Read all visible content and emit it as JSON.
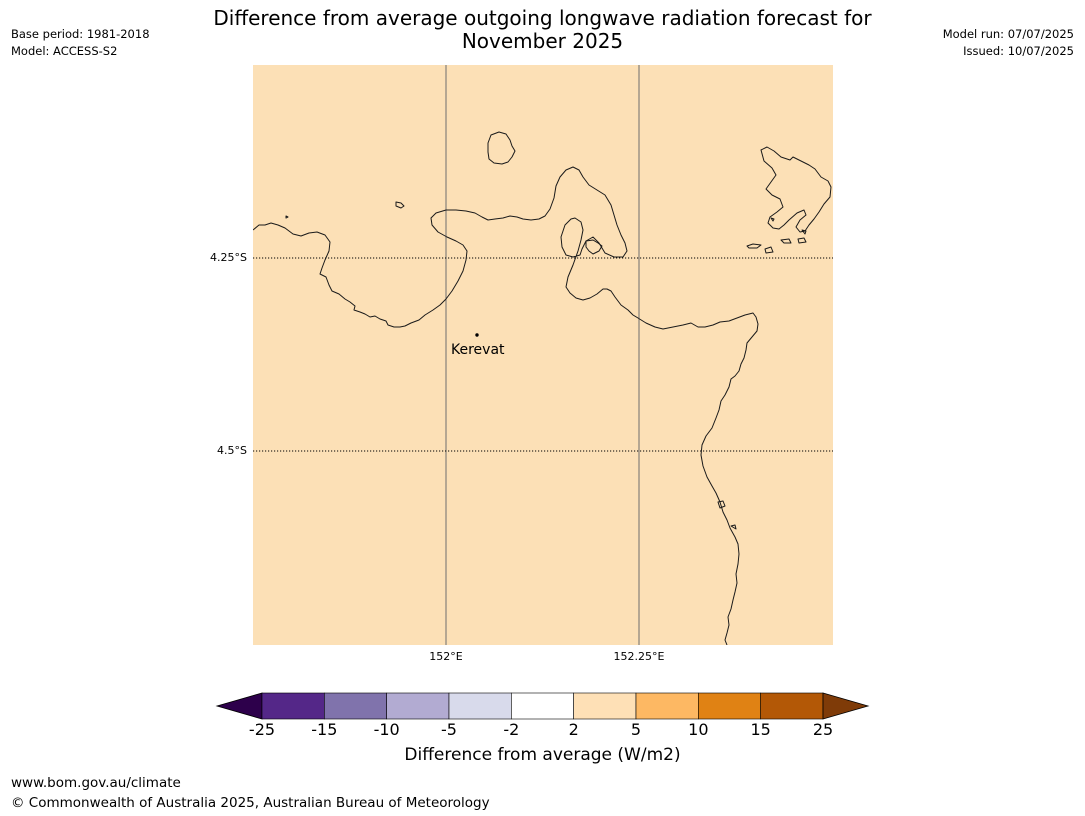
{
  "header": {
    "base_period": "Base period: 1981-2018",
    "model": "Model: ACCESS-S2",
    "title_line1": "Difference from average outgoing longwave radiation forecast for",
    "title_line2": "November 2025",
    "model_run": "Model run: 07/07/2025",
    "issued": "Issued: 10/07/2025"
  },
  "map": {
    "fill_color": "#fce0b6",
    "lat_labels": [
      "4.25°S",
      "4.5°S"
    ],
    "lon_labels": [
      "152°E",
      "152.25°E"
    ],
    "place": {
      "name": "Kerevat"
    }
  },
  "colorbar": {
    "title": "Difference from average (W/m2)",
    "ticks": [
      "-25",
      "-15",
      "-10",
      "-5",
      "-2",
      "2",
      "5",
      "10",
      "15",
      "25"
    ],
    "bins": [
      {
        "from": -25,
        "to": -15,
        "color": "#542788"
      },
      {
        "from": -15,
        "to": -10,
        "color": "#8073ac"
      },
      {
        "from": -10,
        "to": -5,
        "color": "#b2abd2"
      },
      {
        "from": -5,
        "to": -2,
        "color": "#d8daeb"
      },
      {
        "from": -2,
        "to": 2,
        "color": "#ffffff"
      },
      {
        "from": 2,
        "to": 5,
        "color": "#fee0b6"
      },
      {
        "from": 5,
        "to": 10,
        "color": "#fdb863"
      },
      {
        "from": 10,
        "to": 15,
        "color": "#e08214"
      },
      {
        "from": 15,
        "to": 25,
        "color": "#b35806"
      }
    ],
    "under_color": "#2d004b",
    "over_color": "#7f3b08"
  },
  "footer": {
    "url": "www.bom.gov.au/climate",
    "copyright": "© Commonwealth of Australia 2025, Australian Bureau of Meteorology"
  }
}
